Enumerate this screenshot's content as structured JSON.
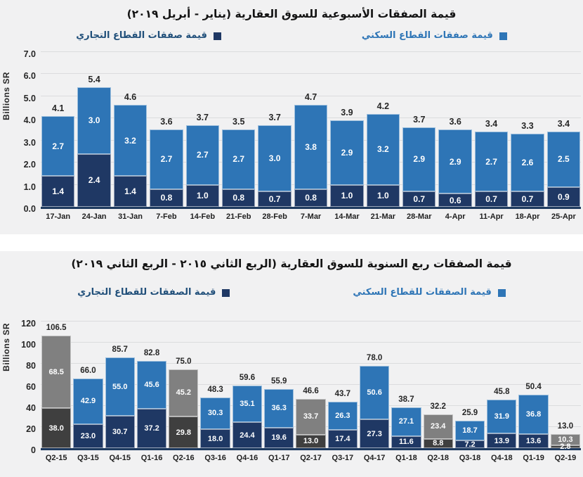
{
  "colors": {
    "residential": "#2E75B6",
    "commercial": "#1F3864",
    "highlight_residential": "#808080",
    "highlight_commercial": "#3F3F3F",
    "panel_background": "#F1F1F2",
    "gridline": "#DBDCDE",
    "axis_line": "#1E3A5F",
    "legend_residential_text": "#2E75B6",
    "legend_commercial_text": "#1F4E79"
  },
  "chart_data": [
    {
      "type": "bar",
      "stacked": true,
      "title": "قيمة الصفقات الأسبوعية للسوق العقارية (يناير - أبريل ٢٠١٩)",
      "ylabel": "Billions SR",
      "ylim": [
        0,
        7
      ],
      "yticks": [
        "7.0",
        "6.0",
        "5.0",
        "4.0",
        "3.0",
        "2.0",
        "1.0",
        "0.0"
      ],
      "grid": true,
      "legend_position": "top",
      "categories": [
        "17-Jan",
        "24-Jan",
        "31-Jan",
        "7-Feb",
        "14-Feb",
        "21-Feb",
        "28-Feb",
        "7-Mar",
        "14-Mar",
        "21-Mar",
        "28-Mar",
        "4-Apr",
        "11-Apr",
        "18-Apr",
        "25-Apr"
      ],
      "series": [
        {
          "name": "قيمة صفقات القطاع السكني",
          "color": "#2E75B6",
          "values": [
            2.7,
            3.0,
            3.2,
            2.7,
            2.7,
            2.7,
            3.0,
            3.8,
            2.9,
            3.2,
            2.9,
            2.9,
            2.7,
            2.6,
            2.5
          ]
        },
        {
          "name": "قيمة صفقات القطاع التجاري",
          "color": "#1F3864",
          "values": [
            1.4,
            2.4,
            1.4,
            0.8,
            1.0,
            0.8,
            0.7,
            0.8,
            1.0,
            1.0,
            0.7,
            0.6,
            0.7,
            0.7,
            0.9
          ]
        }
      ],
      "totals": [
        4.1,
        5.4,
        4.6,
        3.6,
        3.7,
        3.5,
        3.7,
        4.7,
        3.9,
        4.2,
        3.7,
        3.6,
        3.4,
        3.3,
        3.4
      ]
    },
    {
      "type": "bar",
      "stacked": true,
      "title": "قيمة الصفقات ربع السنوية للسوق العقارية (الربع الثاني ٢٠١٥ - الربع الثاني ٢٠١٩)",
      "ylabel": "Billions SR",
      "ylim": [
        0,
        120
      ],
      "yticks": [
        "120",
        "100",
        "80",
        "60",
        "40",
        "20",
        "0"
      ],
      "grid": true,
      "legend_position": "top",
      "categories": [
        "Q2-15",
        "Q3-15",
        "Q4-15",
        "Q1-16",
        "Q2-16",
        "Q3-16",
        "Q4-16",
        "Q1-17",
        "Q2-17",
        "Q3-17",
        "Q4-17",
        "Q1-18",
        "Q2-18",
        "Q3-18",
        "Q4-18",
        "Q1-19",
        "Q2-19"
      ],
      "series": [
        {
          "name": "قيمة الصفقات للقطاع السكني",
          "color": "#2E75B6",
          "values": [
            68.5,
            42.9,
            55.0,
            45.6,
            45.2,
            30.3,
            35.1,
            36.3,
            33.7,
            26.3,
            50.6,
            27.1,
            23.4,
            18.7,
            31.9,
            36.8,
            10.3
          ]
        },
        {
          "name": "قيمة الصفقات للقطاع التجاري",
          "color": "#1F3864",
          "values": [
            38.0,
            23.0,
            30.7,
            37.2,
            29.8,
            18.0,
            24.4,
            19.6,
            13.0,
            17.4,
            27.3,
            11.6,
            8.8,
            7.2,
            13.9,
            13.6,
            2.8
          ]
        }
      ],
      "totals": [
        106.5,
        66.0,
        85.7,
        82.8,
        75.0,
        48.3,
        59.6,
        55.9,
        46.6,
        43.7,
        78.0,
        38.7,
        32.2,
        25.9,
        45.8,
        50.4,
        13.0
      ],
      "highlight_indices": [
        0,
        4,
        8,
        12,
        16
      ],
      "highlight_colors": {
        "residential": "#808080",
        "commercial": "#3F3F3F"
      }
    }
  ]
}
